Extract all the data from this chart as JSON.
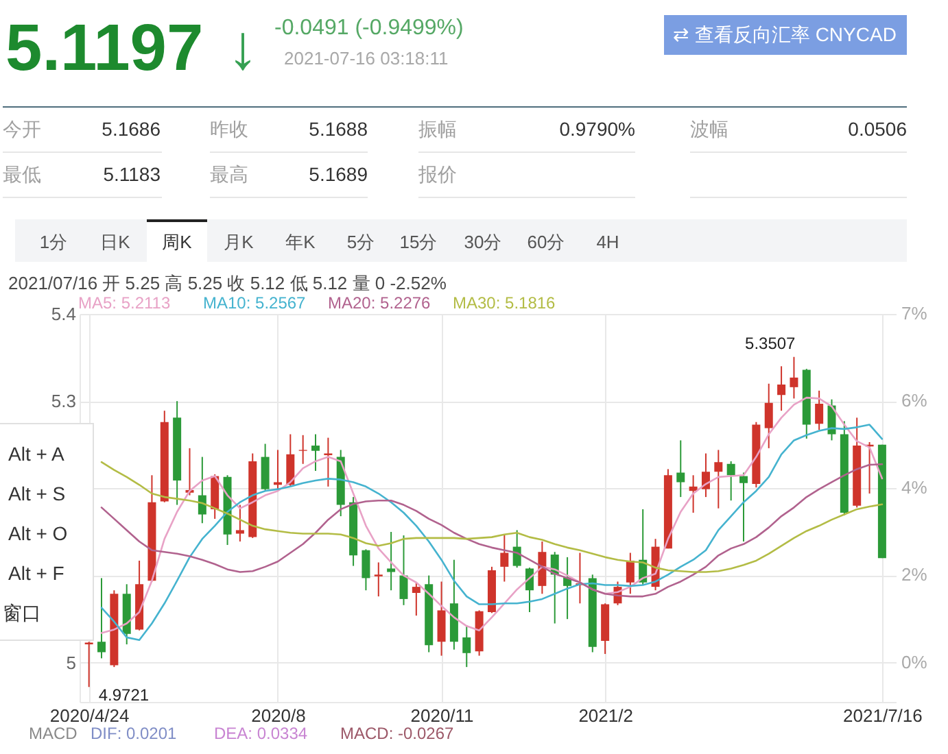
{
  "chart_data": {
    "type": "candlestick",
    "title": "5.1197",
    "subtitle": "2021/07/16 开 5.25 高 5.25 收 5.12 低 5.12 量 0 -2.52%",
    "categories": [
      "2020/4/24",
      null,
      null,
      null,
      null,
      null,
      null,
      null,
      null,
      null,
      null,
      null,
      null,
      null,
      null,
      "2020/8",
      null,
      null,
      null,
      null,
      null,
      null,
      null,
      null,
      null,
      null,
      null,
      null,
      "2020/11",
      null,
      null,
      null,
      null,
      null,
      null,
      null,
      null,
      null,
      null,
      null,
      null,
      "2021/2",
      null,
      null,
      null,
      null,
      null,
      null,
      null,
      null,
      null,
      null,
      null,
      null,
      null,
      null,
      null,
      null,
      null,
      null,
      null,
      null,
      null,
      "2021/7/16"
    ],
    "ohlc": [
      [
        5.021,
        5.024,
        4.9721,
        5.023
      ],
      [
        5.024,
        5.097,
        5.005,
        5.012
      ],
      [
        4.997,
        5.083,
        4.995,
        5.079
      ],
      [
        5.079,
        5.09,
        5.021,
        5.033
      ],
      [
        5.038,
        5.117,
        5.037,
        5.09
      ],
      [
        5.094,
        5.215,
        5.093,
        5.184
      ],
      [
        5.185,
        5.289,
        5.184,
        5.276
      ],
      [
        5.281,
        5.3,
        5.181,
        5.209
      ],
      [
        5.195,
        5.246,
        5.192,
        5.198
      ],
      [
        5.192,
        5.236,
        5.16,
        5.17
      ],
      [
        5.176,
        5.216,
        5.165,
        5.214
      ],
      [
        5.213,
        5.215,
        5.135,
        5.147
      ],
      [
        5.148,
        5.181,
        5.139,
        5.152
      ],
      [
        5.144,
        5.24,
        5.143,
        5.231
      ],
      [
        5.236,
        5.251,
        5.198,
        5.199
      ],
      [
        5.204,
        5.244,
        5.199,
        5.207
      ],
      [
        5.204,
        5.262,
        5.202,
        5.239
      ],
      [
        5.243,
        5.261,
        5.228,
        5.244
      ],
      [
        5.249,
        5.262,
        5.22,
        5.243
      ],
      [
        5.238,
        5.258,
        5.202,
        5.24
      ],
      [
        5.236,
        5.244,
        5.168,
        5.181
      ],
      [
        5.184,
        5.19,
        5.111,
        5.123
      ],
      [
        5.129,
        5.13,
        5.083,
        5.097
      ],
      [
        5.099,
        5.115,
        5.076,
        5.101
      ],
      [
        5.108,
        5.15,
        5.083,
        5.104
      ],
      [
        5.1,
        5.146,
        5.066,
        5.073
      ],
      [
        5.08,
        5.092,
        5.054,
        5.087
      ],
      [
        5.09,
        5.1,
        5.012,
        5.02
      ],
      [
        5.024,
        5.093,
        5.008,
        5.06
      ],
      [
        5.068,
        5.118,
        5.015,
        5.024
      ],
      [
        5.029,
        5.043,
        4.995,
        5.011
      ],
      [
        5.013,
        5.06,
        5.008,
        5.059
      ],
      [
        5.058,
        5.11,
        5.057,
        5.106
      ],
      [
        5.11,
        5.147,
        5.093,
        5.126
      ],
      [
        5.133,
        5.152,
        5.109,
        5.111
      ],
      [
        5.108,
        5.109,
        5.058,
        5.083
      ],
      [
        5.088,
        5.139,
        5.079,
        5.127
      ],
      [
        5.124,
        5.127,
        5.045,
        5.101
      ],
      [
        5.098,
        5.121,
        5.05,
        5.088
      ],
      [
        5.089,
        5.126,
        5.068,
        5.091
      ],
      [
        5.097,
        5.101,
        5.012,
        5.018
      ],
      [
        5.025,
        5.068,
        5.01,
        5.067
      ],
      [
        5.068,
        5.093,
        5.066,
        5.087
      ],
      [
        5.092,
        5.126,
        5.079,
        5.117
      ],
      [
        5.118,
        5.176,
        5.089,
        5.092
      ],
      [
        5.087,
        5.142,
        5.083,
        5.133
      ],
      [
        5.131,
        5.222,
        5.131,
        5.215
      ],
      [
        5.218,
        5.255,
        5.19,
        5.207
      ],
      [
        5.197,
        5.215,
        5.172,
        5.202
      ],
      [
        5.199,
        5.24,
        5.19,
        5.219
      ],
      [
        5.219,
        5.244,
        5.177,
        5.23
      ],
      [
        5.228,
        5.231,
        5.186,
        5.215
      ],
      [
        5.214,
        5.218,
        5.139,
        5.206
      ],
      [
        5.205,
        5.276,
        5.201,
        5.273
      ],
      [
        5.269,
        5.32,
        5.246,
        5.298
      ],
      [
        5.307,
        5.34,
        5.289,
        5.319
      ],
      [
        5.316,
        5.3507,
        5.303,
        5.327
      ],
      [
        5.336,
        5.337,
        5.257,
        5.273
      ],
      [
        5.274,
        5.312,
        5.267,
        5.297
      ],
      [
        5.295,
        5.302,
        5.255,
        5.262
      ],
      [
        5.262,
        5.277,
        5.169,
        5.172
      ],
      [
        5.18,
        5.281,
        5.178,
        5.249
      ],
      [
        5.248,
        5.253,
        5.194,
        5.25
      ],
      [
        5.25,
        5.25,
        5.12,
        5.12
      ]
    ],
    "colors": [
      "#cf342b",
      "#2b9a38",
      "#cf342b",
      "#2b9a38",
      "#cf342b",
      "#cf342b",
      "#cf342b",
      "#2b9a38",
      "#cf342b",
      "#2b9a38",
      "#cf342b",
      "#2b9a38",
      "#cf342b",
      "#cf342b",
      "#2b9a38",
      "#cf342b",
      "#cf342b",
      "#cf342b",
      "#2b9a38",
      "#cf342b",
      "#2b9a38",
      "#2b9a38",
      "#2b9a38",
      "#cf342b",
      "#2b9a38",
      "#2b9a38",
      "#cf342b",
      "#2b9a38",
      "#cf342b",
      "#2b9a38",
      "#2b9a38",
      "#cf342b",
      "#cf342b",
      "#cf342b",
      "#2b9a38",
      "#2b9a38",
      "#cf342b",
      "#2b9a38",
      "#2b9a38",
      "#cf342b",
      "#2b9a38",
      "#cf342b",
      "#cf342b",
      "#cf342b",
      "#2b9a38",
      "#cf342b",
      "#cf342b",
      "#2b9a38",
      "#cf342b",
      "#cf342b",
      "#cf342b",
      "#2b9a38",
      "#2b9a38",
      "#cf342b",
      "#cf342b",
      "#cf342b",
      "#cf342b",
      "#2b9a38",
      "#cf342b",
      "#2b9a38",
      "#2b9a38",
      "#cf342b",
      "#cf342b",
      "#2b9a38"
    ],
    "series": [
      {
        "name": "MA5: 5.2113",
        "type": "line",
        "color": "#e8a2c6",
        "values": [
          null,
          5.034,
          5.038,
          5.045,
          5.058,
          5.094,
          5.142,
          5.173,
          5.197,
          5.209,
          5.214,
          5.192,
          5.177,
          5.184,
          5.192,
          5.197,
          5.207,
          5.223,
          5.231,
          5.236,
          5.231,
          5.194,
          5.157,
          5.131,
          5.115,
          5.1,
          5.092,
          5.079,
          5.065,
          5.052,
          5.042,
          5.037,
          5.052,
          5.068,
          5.084,
          5.097,
          5.11,
          5.107,
          5.1,
          5.092,
          5.084,
          5.079,
          5.081,
          5.087,
          5.097,
          5.102,
          5.142,
          5.173,
          5.194,
          5.205,
          5.213,
          5.214,
          5.215,
          5.236,
          5.262,
          5.281,
          5.296,
          5.304,
          5.303,
          5.294,
          5.273,
          5.254,
          5.247,
          5.2113
        ]
      },
      {
        "name": "MA10: 5.2567",
        "type": "line",
        "color": "#45b3cf",
        "values": [
          null,
          5.063,
          5.047,
          5.029,
          5.026,
          5.045,
          5.068,
          5.094,
          5.121,
          5.142,
          5.157,
          5.173,
          5.184,
          5.192,
          5.197,
          5.199,
          5.202,
          5.206,
          5.209,
          5.211,
          5.21,
          5.207,
          5.202,
          5.194,
          5.184,
          5.172,
          5.157,
          5.139,
          5.118,
          5.094,
          5.076,
          5.067,
          5.067,
          5.068,
          5.068,
          5.07,
          5.073,
          5.079,
          5.085,
          5.09,
          5.091,
          5.089,
          5.089,
          5.088,
          5.089,
          5.093,
          5.101,
          5.11,
          5.118,
          5.129,
          5.152,
          5.168,
          5.184,
          5.197,
          5.213,
          5.239,
          5.255,
          5.261,
          5.266,
          5.269,
          5.268,
          5.27,
          5.273,
          5.2567
        ]
      },
      {
        "name": "MA20: 5.2276",
        "type": "line",
        "color": "#b1628e",
        "values": [
          null,
          5.178,
          5.165,
          5.152,
          5.139,
          5.129,
          5.127,
          5.125,
          5.122,
          5.118,
          5.113,
          5.107,
          5.104,
          5.105,
          5.11,
          5.116,
          5.126,
          5.136,
          5.149,
          5.164,
          5.176,
          5.182,
          5.185,
          5.186,
          5.186,
          5.181,
          5.174,
          5.165,
          5.158,
          5.149,
          5.142,
          5.136,
          5.132,
          5.129,
          5.126,
          5.118,
          5.11,
          5.102,
          5.097,
          5.092,
          5.084,
          5.079,
          5.077,
          5.076,
          5.076,
          5.079,
          5.087,
          5.093,
          5.101,
          5.11,
          5.123,
          5.131,
          5.136,
          5.144,
          5.155,
          5.168,
          5.178,
          5.19,
          5.199,
          5.207,
          5.215,
          5.222,
          5.227,
          5.2276
        ]
      },
      {
        "name": "MA30: 5.1816",
        "type": "line",
        "color": "#b3bc45",
        "values": [
          null,
          5.23,
          5.221,
          5.213,
          5.204,
          5.194,
          5.19,
          5.188,
          5.186,
          5.183,
          5.177,
          5.171,
          5.164,
          5.157,
          5.153,
          5.151,
          5.149,
          5.148,
          5.148,
          5.148,
          5.147,
          5.143,
          5.137,
          5.134,
          5.137,
          5.142,
          5.143,
          5.143,
          5.143,
          5.143,
          5.142,
          5.143,
          5.144,
          5.147,
          5.149,
          5.144,
          5.141,
          5.136,
          5.132,
          5.129,
          5.125,
          5.121,
          5.118,
          5.116,
          5.115,
          5.109,
          5.106,
          5.105,
          5.104,
          5.104,
          5.105,
          5.108,
          5.112,
          5.117,
          5.125,
          5.134,
          5.143,
          5.151,
          5.157,
          5.164,
          5.17,
          5.176,
          5.179,
          5.1816
        ]
      }
    ],
    "ylim": [
      4.955,
      5.4
    ],
    "yticks": [
      5,
      {
        "value": 5.1,
        "label": null
      },
      {
        "value": 5.2,
        "label": null
      },
      5.3,
      5.4
    ],
    "y2lim": [
      -1.37,
      7.49
    ],
    "y2ticks": [
      {
        "value": -0.47,
        "label": "0%"
      },
      {
        "value": 1.52,
        "label": "2%"
      },
      {
        "value": 3.51,
        "label": "4%"
      },
      {
        "value": 5.5,
        "label": "6%"
      },
      {
        "value": 7.49,
        "label": "7%"
      }
    ],
    "grid": true,
    "legend": "top left",
    "annotations": [
      "↓",
      "-0.0491 (-0.9499%)",
      "2021-07-16 03:18:11",
      "⇄ 查看反向汇率 CNYCAD",
      "今开",
      "5.1686",
      "昨收",
      "5.1688",
      "振幅",
      "0.9790%",
      "波幅",
      "0.0506",
      "最低",
      "5.1183",
      "最高",
      "5.1689",
      "报价",
      "1分",
      "日K",
      "周K",
      "月K",
      "年K",
      "5分",
      "15分",
      "30分",
      "60分",
      "4H",
      "Alt + A",
      "Alt + S",
      "Alt + O",
      "Alt + F",
      "窗口",
      "MACD",
      "DIF: 0.0201",
      "DEA: 0.0334",
      "MACD: -0.0267",
      "5.3507",
      "4.9721"
    ]
  }
}
